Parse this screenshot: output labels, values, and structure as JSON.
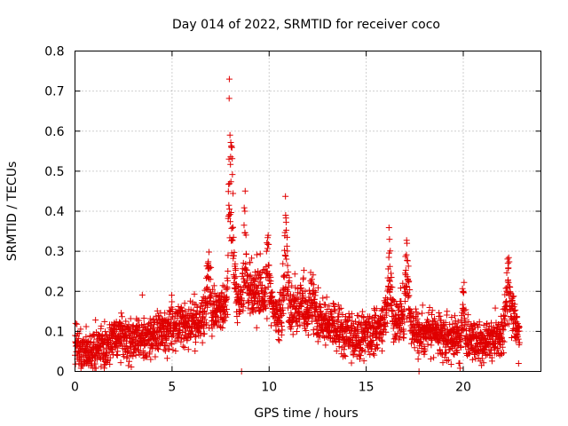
{
  "chart_data": {
    "type": "scatter",
    "title": "Day 014 of 2022, SRMTID for receiver coco",
    "xlabel": "GPS time / hours",
    "ylabel": "SRMTID / TECUs",
    "xlim": [
      0,
      24
    ],
    "ylim": [
      0,
      0.8
    ],
    "xticks": [
      0,
      5,
      10,
      15,
      20
    ],
    "yticks": [
      0,
      0.1,
      0.2,
      0.3,
      0.4,
      0.5,
      0.6,
      0.7,
      0.8
    ],
    "xtick_labels": [
      "0",
      "5",
      "10",
      "15",
      "20"
    ],
    "ytick_labels": [
      "0",
      "0.1",
      "0.2",
      "0.3",
      "0.4",
      "0.5",
      "0.6",
      "0.7",
      "0.8"
    ],
    "grid": true,
    "marker": "+",
    "color": "#e00000",
    "series": [
      {
        "name": "SRMTID",
        "sample_interval_hours": 0.008333,
        "baseline": [
          [
            0.0,
            0.07
          ],
          [
            0.5,
            0.045
          ],
          [
            1.0,
            0.05
          ],
          [
            1.5,
            0.06
          ],
          [
            2.0,
            0.085
          ],
          [
            2.5,
            0.08
          ],
          [
            3.0,
            0.075
          ],
          [
            3.5,
            0.08
          ],
          [
            4.0,
            0.09
          ],
          [
            4.5,
            0.1
          ],
          [
            5.0,
            0.11
          ],
          [
            5.5,
            0.115
          ],
          [
            6.0,
            0.12
          ],
          [
            6.5,
            0.13
          ],
          [
            7.0,
            0.14
          ],
          [
            7.5,
            0.15
          ],
          [
            8.0,
            0.17
          ],
          [
            8.5,
            0.17
          ],
          [
            9.0,
            0.19
          ],
          [
            9.5,
            0.19
          ],
          [
            10.0,
            0.17
          ],
          [
            10.5,
            0.14
          ],
          [
            11.0,
            0.16
          ],
          [
            11.5,
            0.15
          ],
          [
            12.0,
            0.14
          ],
          [
            12.5,
            0.13
          ],
          [
            13.0,
            0.12
          ],
          [
            13.5,
            0.11
          ],
          [
            14.0,
            0.09
          ],
          [
            14.5,
            0.09
          ],
          [
            15.0,
            0.09
          ],
          [
            15.5,
            0.1
          ],
          [
            16.0,
            0.13
          ],
          [
            16.5,
            0.12
          ],
          [
            17.0,
            0.14
          ],
          [
            17.5,
            0.1
          ],
          [
            18.0,
            0.09
          ],
          [
            18.5,
            0.1
          ],
          [
            19.0,
            0.09
          ],
          [
            19.5,
            0.08
          ],
          [
            20.0,
            0.08
          ],
          [
            20.5,
            0.08
          ],
          [
            21.0,
            0.07
          ],
          [
            21.5,
            0.07
          ],
          [
            22.0,
            0.09
          ],
          [
            22.3,
            0.15
          ],
          [
            22.6,
            0.13
          ],
          [
            22.9,
            0.08
          ]
        ],
        "spread": 0.035,
        "bursts": [
          [
            6.85,
            0.27,
            0.08
          ],
          [
            7.95,
            0.73,
            0.04
          ],
          [
            8.05,
            0.56,
            0.1
          ],
          [
            8.75,
            0.4,
            0.08
          ],
          [
            9.35,
            0.24,
            0.15
          ],
          [
            9.95,
            0.34,
            0.08
          ],
          [
            10.85,
            0.39,
            0.08
          ],
          [
            11.75,
            0.23,
            0.1
          ],
          [
            12.2,
            0.23,
            0.1
          ],
          [
            16.2,
            0.33,
            0.08
          ],
          [
            17.1,
            0.32,
            0.08
          ],
          [
            20.0,
            0.2,
            0.06
          ],
          [
            22.3,
            0.27,
            0.1
          ]
        ],
        "outliers": [
          [
            8.58,
            0.0
          ],
          [
            17.72,
            0.0
          ],
          [
            22.85,
            0.02
          ],
          [
            0.6,
            0.02
          ],
          [
            3.9,
            0.03
          ]
        ]
      }
    ]
  }
}
